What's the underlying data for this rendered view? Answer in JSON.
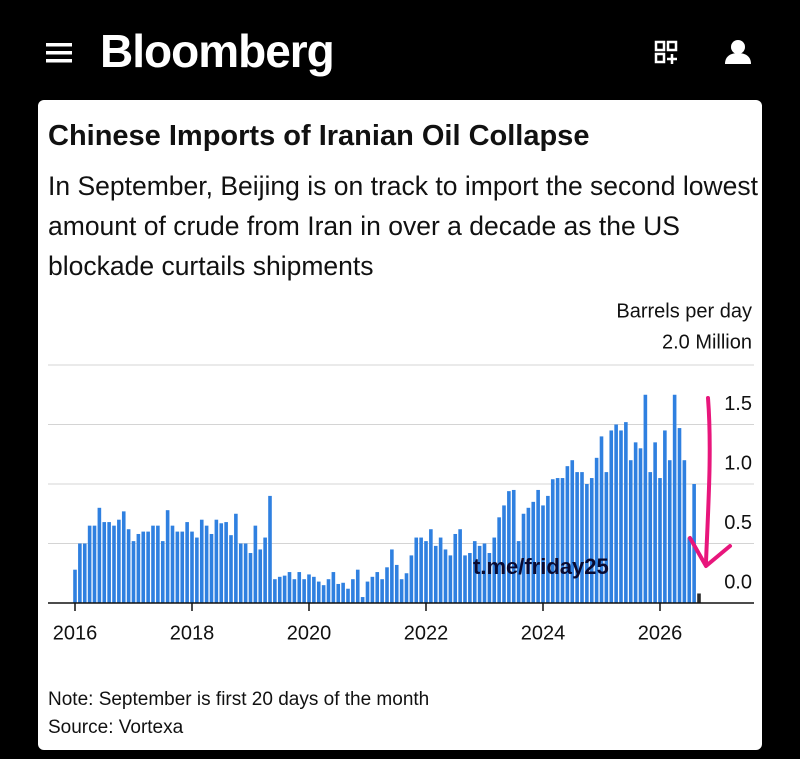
{
  "header": {
    "brand": "Bloomberg"
  },
  "chart_data": {
    "type": "bar",
    "title": "Chinese Imports of Iranian Oil Collapse",
    "subtitle": "In September, Beijing is on track to import the second lowest amount of crude from Iran in over a decade as the US blockade curtails shipments",
    "y_label": "Barrels per day",
    "categories": [
      "2016",
      null,
      null,
      null,
      null,
      null,
      null,
      null,
      null,
      null,
      null,
      null,
      null,
      null,
      null,
      null,
      null,
      null,
      null,
      null,
      null,
      null,
      null,
      null,
      "2018",
      null,
      null,
      null,
      null,
      null,
      null,
      null,
      null,
      null,
      null,
      null,
      null,
      null,
      null,
      null,
      null,
      null,
      null,
      null,
      null,
      null,
      null,
      null,
      "2020",
      null,
      null,
      null,
      null,
      null,
      null,
      null,
      null,
      null,
      null,
      null,
      null,
      null,
      null,
      null,
      null,
      null,
      null,
      null,
      null,
      null,
      null,
      null,
      "2022",
      null,
      null,
      null,
      null,
      null,
      null,
      null,
      null,
      null,
      null,
      null,
      null,
      null,
      null,
      null,
      null,
      null,
      null,
      null,
      null,
      null,
      null,
      null,
      "2024",
      null,
      null,
      null,
      null,
      null,
      null,
      null,
      null,
      null,
      null,
      null,
      null,
      null,
      null,
      null,
      null,
      null,
      null,
      null,
      null,
      null,
      null,
      null,
      "2026",
      null,
      null,
      null,
      null,
      null,
      null,
      null,
      null
    ],
    "values": [
      0.28,
      0.5,
      0.5,
      0.65,
      0.65,
      0.8,
      0.68,
      0.68,
      0.65,
      0.7,
      0.77,
      0.62,
      0.52,
      0.58,
      0.6,
      0.6,
      0.65,
      0.65,
      0.52,
      0.78,
      0.65,
      0.6,
      0.6,
      0.68,
      0.6,
      0.55,
      0.7,
      0.65,
      0.58,
      0.7,
      0.67,
      0.68,
      0.57,
      0.75,
      0.5,
      0.5,
      0.42,
      0.65,
      0.45,
      0.55,
      0.9,
      0.2,
      0.22,
      0.23,
      0.26,
      0.2,
      0.26,
      0.2,
      0.24,
      0.22,
      0.18,
      0.15,
      0.2,
      0.26,
      0.16,
      0.17,
      0.12,
      0.2,
      0.28,
      0.05,
      0.18,
      0.22,
      0.26,
      0.2,
      0.3,
      0.45,
      0.32,
      0.2,
      0.25,
      0.4,
      0.55,
      0.55,
      0.52,
      0.62,
      0.48,
      0.55,
      0.45,
      0.4,
      0.58,
      0.62,
      0.4,
      0.42,
      0.52,
      0.48,
      0.5,
      0.42,
      0.55,
      0.72,
      0.82,
      0.94,
      0.95,
      0.52,
      0.75,
      0.8,
      0.85,
      0.95,
      0.82,
      0.9,
      1.04,
      1.05,
      1.05,
      1.15,
      1.2,
      1.1,
      1.1,
      1.0,
      1.05,
      1.22,
      1.4,
      1.1,
      1.45,
      1.5,
      1.45,
      1.52,
      1.2,
      1.35,
      1.3,
      1.75,
      1.1,
      1.35,
      1.05,
      1.45,
      1.2,
      1.75,
      1.47,
      1.2,
      0.55,
      1.0,
      0.08
    ],
    "color": "#2f80e0",
    "partial_color": "#2b2b2b",
    "ylim": [
      0,
      2
    ],
    "yticks": [
      {
        "value": 0,
        "label": "0.0"
      },
      0.5,
      {
        "value": 1,
        "label": "1.0"
      },
      1.5,
      {
        "value": 2,
        "label": "2.0 Million"
      }
    ],
    "grid": true,
    "annotation": "t.me/friday25",
    "note": "Note: September is first 20 days of the month",
    "source": "Source: Vortexa"
  }
}
